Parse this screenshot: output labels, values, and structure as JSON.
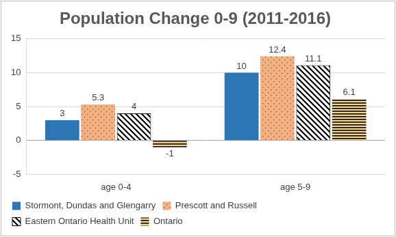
{
  "chart_data": {
    "type": "bar",
    "title": "Population Change 0-9 (2011-2016)",
    "categories": [
      "age 0-4",
      "age 5-9"
    ],
    "series": [
      {
        "name": "Stormont, Dundas and Glengarry",
        "color": "#2e75b6",
        "values": [
          3,
          10
        ]
      },
      {
        "name": "Prescott and Russell",
        "color": "#f4b183",
        "values": [
          5.3,
          12.4
        ]
      },
      {
        "name": "Eastern Ontario Health Unit",
        "color": "#000000",
        "values": [
          4,
          11.1
        ]
      },
      {
        "name": "Ontario",
        "color": "#f7d58f",
        "values": [
          -1,
          6.1
        ]
      }
    ],
    "ylim": [
      -5,
      15
    ],
    "yticks": [
      -5,
      0,
      5,
      10,
      15
    ],
    "grid": true,
    "legend": "bottom",
    "data_labels": true
  }
}
